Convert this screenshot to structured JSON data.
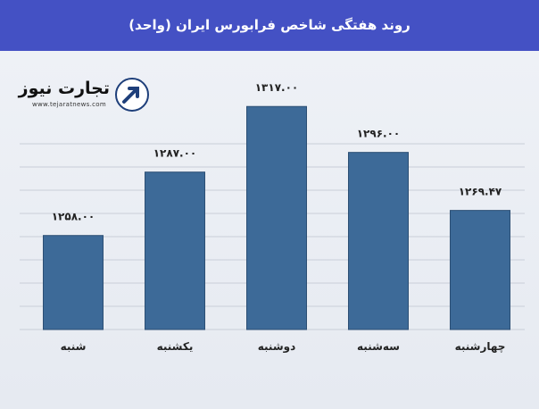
{
  "header": {
    "title": "روند هفتگی شاخص فرابورس ایران (واحد)"
  },
  "logo": {
    "name": "تجارت نیوز",
    "url": "www.tejaratnews.com"
  },
  "colors": {
    "header_bg": "#4451c4",
    "bar": "#3d6a98",
    "bar_edge": "#2c4f74"
  },
  "chart_data": {
    "type": "bar",
    "title": "روند هفتگی شاخص فرابورس ایران (واحد)",
    "categories": [
      "شنبه",
      "یکشنبه",
      "دوشنبه",
      "سه‌شنبه",
      "چهارشنبه"
    ],
    "values": [
      1258.0,
      1287.0,
      1317.0,
      1296.0,
      1269.47
    ],
    "value_labels": [
      "۱۲۵۸.۰۰",
      "۱۲۸۷.۰۰",
      "۱۳۱۷.۰۰",
      "۱۲۹۶.۰۰",
      "۱۲۶۹.۴۷"
    ],
    "xlabel": "",
    "ylabel": "",
    "grid": true,
    "legend": "none"
  }
}
